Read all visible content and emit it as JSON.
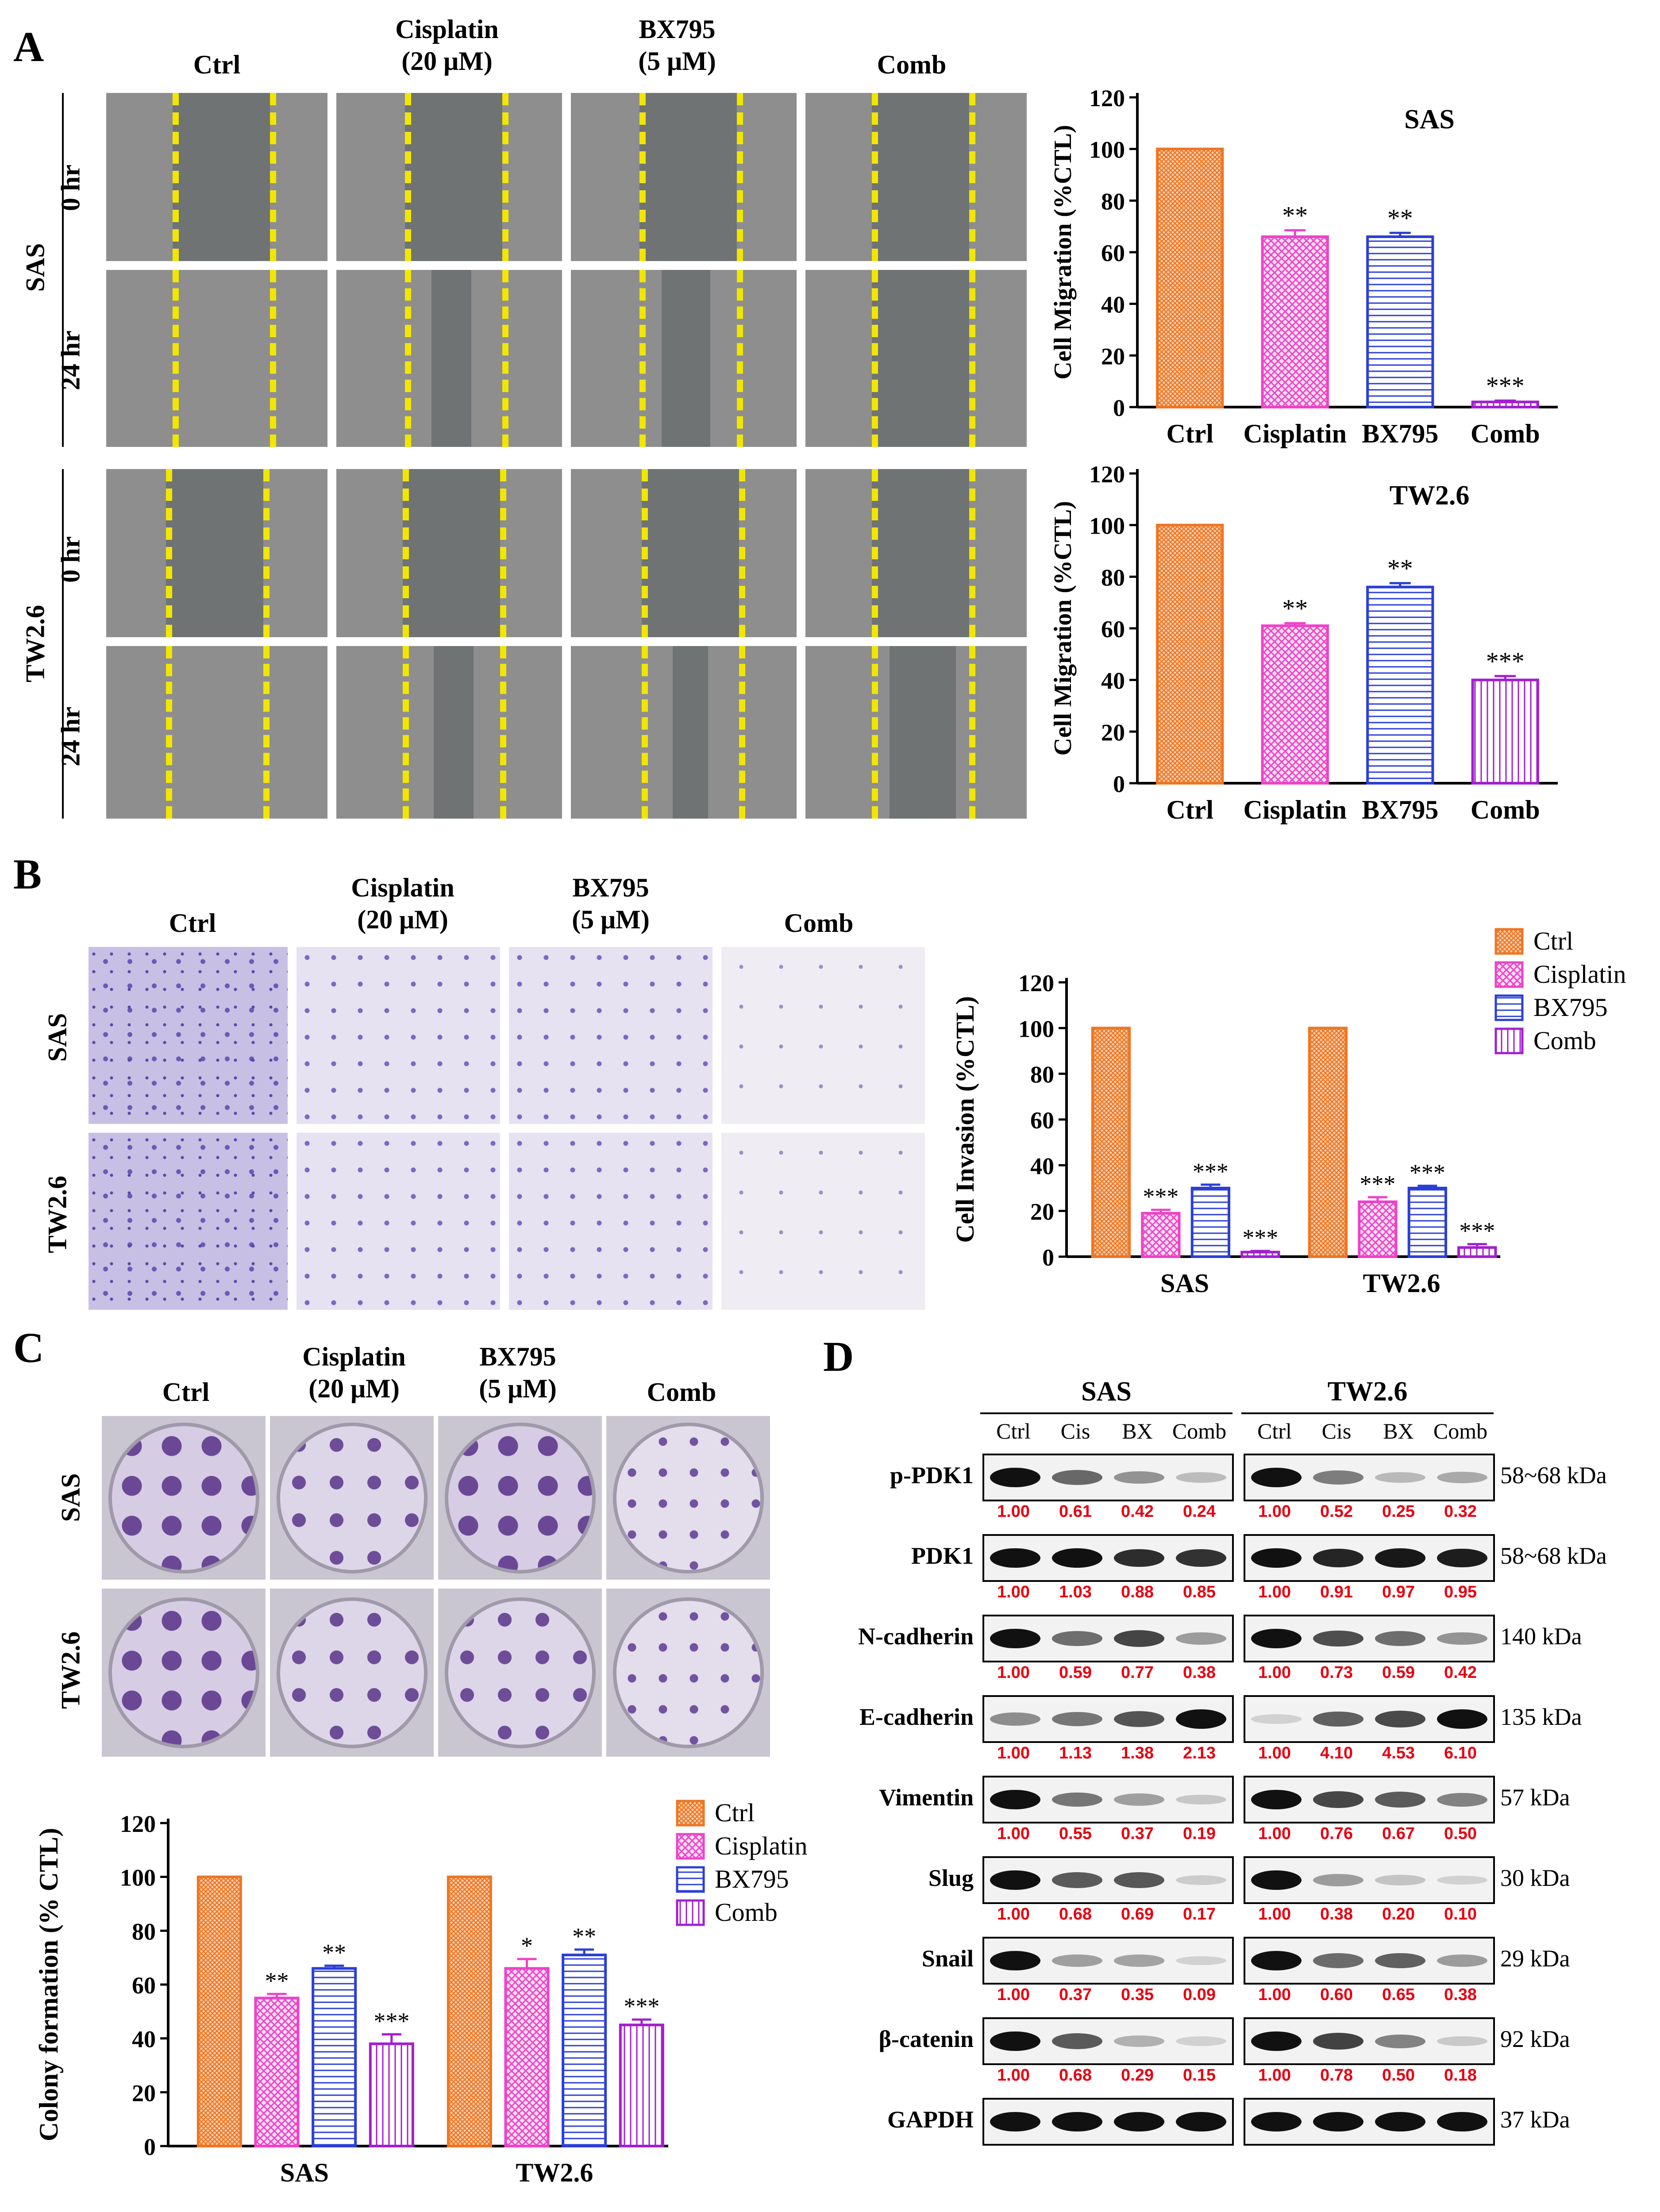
{
  "panels": {
    "A": "A",
    "B": "B",
    "C": "C",
    "D": "D"
  },
  "treatments": {
    "ctrl": "Ctrl",
    "cisplatin": "Cisplatin",
    "cisplatin_dose": "(20 μM)",
    "bx795": "BX795",
    "bx795_dose": "(5 μM)",
    "comb": "Comb"
  },
  "cell_lines": {
    "sas": "SAS",
    "tw26": "TW2.6"
  },
  "timepoints": {
    "t0": "0 hr",
    "t24": "24 hr"
  },
  "significance": {
    "one": "*",
    "two": "**",
    "three": "***"
  },
  "colors": {
    "ctrl": "#ee7623",
    "cisplatin": "#ee42c8",
    "bx795": "#2b3fd6",
    "comb": "#a21fd0",
    "ratio": "#e60012",
    "marker": "#f2e600"
  },
  "chart_data": [
    {
      "id": "sas_migration",
      "type": "bar",
      "title": "SAS",
      "ylabel": "Cell Migration (%CTL)",
      "categories": [
        "Ctrl",
        "Cisplatin",
        "BX795",
        "Comb"
      ],
      "values": [
        100,
        66,
        66,
        2
      ],
      "errors": [
        0,
        2.5,
        1.5,
        0.5
      ],
      "significance": [
        "",
        "**",
        "**",
        "***"
      ],
      "ylim": [
        0,
        120
      ],
      "yticks": [
        0,
        20,
        40,
        60,
        80,
        100,
        120
      ]
    },
    {
      "id": "tw26_migration",
      "type": "bar",
      "title": "TW2.6",
      "ylabel": "Cell Migration (%CTL)",
      "categories": [
        "Ctrl",
        "Cisplatin",
        "BX795",
        "Comb"
      ],
      "values": [
        100,
        61,
        76,
        40
      ],
      "errors": [
        0,
        1,
        1.5,
        1.5
      ],
      "significance": [
        "",
        "**",
        "**",
        "***"
      ],
      "ylim": [
        0,
        120
      ],
      "yticks": [
        0,
        20,
        40,
        60,
        80,
        100,
        120
      ]
    },
    {
      "id": "invasion",
      "type": "bar",
      "ylabel": "Cell Invasion (%CTL)",
      "groups": [
        "SAS",
        "TW2.6"
      ],
      "series": [
        {
          "name": "Ctrl",
          "values": [
            100,
            100
          ],
          "errors": [
            0,
            0
          ],
          "significance": [
            "",
            ""
          ]
        },
        {
          "name": "Cisplatin",
          "values": [
            19,
            24
          ],
          "errors": [
            1.5,
            2
          ],
          "significance": [
            "***",
            "***"
          ]
        },
        {
          "name": "BX795",
          "values": [
            30,
            30
          ],
          "errors": [
            1.5,
            1
          ],
          "significance": [
            "***",
            "***"
          ]
        },
        {
          "name": "Comb",
          "values": [
            2,
            4
          ],
          "errors": [
            0.5,
            1.5
          ],
          "significance": [
            "***",
            "***"
          ]
        }
      ],
      "legend": [
        "Ctrl",
        "Cisplatin",
        "BX795",
        "Comb"
      ],
      "legend_position": "top-right",
      "ylim": [
        0,
        120
      ],
      "yticks": [
        0,
        20,
        40,
        60,
        80,
        100,
        120
      ]
    },
    {
      "id": "colony",
      "type": "bar",
      "ylabel": "Colony formation (% CTL)",
      "groups": [
        "SAS",
        "TW2.6"
      ],
      "series": [
        {
          "name": "Ctrl",
          "values": [
            100,
            100
          ],
          "errors": [
            0,
            0
          ],
          "significance": [
            "",
            ""
          ]
        },
        {
          "name": "Cisplatin",
          "values": [
            55,
            66
          ],
          "errors": [
            1.5,
            3.5
          ],
          "significance": [
            "**",
            "*"
          ]
        },
        {
          "name": "BX795",
          "values": [
            66,
            71
          ],
          "errors": [
            1,
            2
          ],
          "significance": [
            "**",
            "**"
          ]
        },
        {
          "name": "Comb",
          "values": [
            38,
            45
          ],
          "errors": [
            3.5,
            2
          ],
          "significance": [
            "***",
            "***"
          ]
        }
      ],
      "legend": [
        "Ctrl",
        "Cisplatin",
        "BX795",
        "Comb"
      ],
      "legend_position": "top-right",
      "ylim": [
        0,
        120
      ],
      "yticks": [
        0,
        20,
        40,
        60,
        80,
        100,
        120
      ]
    }
  ],
  "western": {
    "groups": [
      "SAS",
      "TW2.6"
    ],
    "lanes": [
      "Ctrl",
      "Cis",
      "BX",
      "Comb"
    ],
    "proteins": [
      {
        "name": "p-PDK1",
        "kda": "58~68 kDa",
        "sas": [
          "1.00",
          "0.61",
          "0.42",
          "0.24"
        ],
        "tw": [
          "1.00",
          "0.52",
          "0.25",
          "0.32"
        ],
        "sas_int": [
          1.0,
          0.61,
          0.42,
          0.24
        ],
        "tw_int": [
          1.0,
          0.52,
          0.25,
          0.32
        ]
      },
      {
        "name": "PDK1",
        "kda": "58~68 kDa",
        "sas": [
          "1.00",
          "1.03",
          "0.88",
          "0.85"
        ],
        "tw": [
          "1.00",
          "0.91",
          "0.97",
          "0.95"
        ],
        "sas_int": [
          1.0,
          1.03,
          0.88,
          0.85
        ],
        "tw_int": [
          1.0,
          0.91,
          0.97,
          0.95
        ]
      },
      {
        "name": "N-cadherin",
        "kda": "140 kDa",
        "sas": [
          "1.00",
          "0.59",
          "0.77",
          "0.38"
        ],
        "tw": [
          "1.00",
          "0.73",
          "0.59",
          "0.42"
        ],
        "sas_int": [
          1.0,
          0.59,
          0.77,
          0.38
        ],
        "tw_int": [
          1.0,
          0.73,
          0.59,
          0.42
        ]
      },
      {
        "name": "E-cadherin",
        "kda": "135 kDa",
        "sas": [
          "1.00",
          "1.13",
          "1.38",
          "2.13"
        ],
        "tw": [
          "1.00",
          "4.10",
          "4.53",
          "6.10"
        ],
        "sas_int": [
          0.45,
          0.55,
          0.7,
          1.0
        ],
        "tw_int": [
          0.15,
          0.65,
          0.75,
          1.0
        ]
      },
      {
        "name": "Vimentin",
        "kda": "57 kDa",
        "sas": [
          "1.00",
          "0.55",
          "0.37",
          "0.19"
        ],
        "tw": [
          "1.00",
          "0.76",
          "0.67",
          "0.50"
        ],
        "sas_int": [
          1.0,
          0.55,
          0.37,
          0.19
        ],
        "tw_int": [
          1.0,
          0.76,
          0.67,
          0.5
        ]
      },
      {
        "name": "Slug",
        "kda": "30 kDa",
        "sas": [
          "1.00",
          "0.68",
          "0.69",
          "0.17"
        ],
        "tw": [
          "1.00",
          "0.38",
          "0.20",
          "0.10"
        ],
        "sas_int": [
          1.0,
          0.68,
          0.69,
          0.17
        ],
        "tw_int": [
          1.0,
          0.38,
          0.2,
          0.1
        ]
      },
      {
        "name": "Snail",
        "kda": "29 kDa",
        "sas": [
          "1.00",
          "0.37",
          "0.35",
          "0.09"
        ],
        "tw": [
          "1.00",
          "0.60",
          "0.65",
          "0.38"
        ],
        "sas_int": [
          1.0,
          0.37,
          0.35,
          0.09
        ],
        "tw_int": [
          1.0,
          0.6,
          0.65,
          0.38
        ]
      },
      {
        "name": "β-catenin",
        "kda": "92 kDa",
        "sas": [
          "1.00",
          "0.68",
          "0.29",
          "0.15"
        ],
        "tw": [
          "1.00",
          "0.78",
          "0.50",
          "0.18"
        ],
        "sas_int": [
          1.0,
          0.68,
          0.29,
          0.15
        ],
        "tw_int": [
          1.0,
          0.78,
          0.5,
          0.18
        ]
      },
      {
        "name": "GAPDH",
        "kda": "37 kDa",
        "sas": [],
        "tw": [],
        "sas_int": [
          1.0,
          1.0,
          1.0,
          1.0
        ],
        "tw_int": [
          1.0,
          1.0,
          1.0,
          1.0
        ]
      }
    ]
  }
}
